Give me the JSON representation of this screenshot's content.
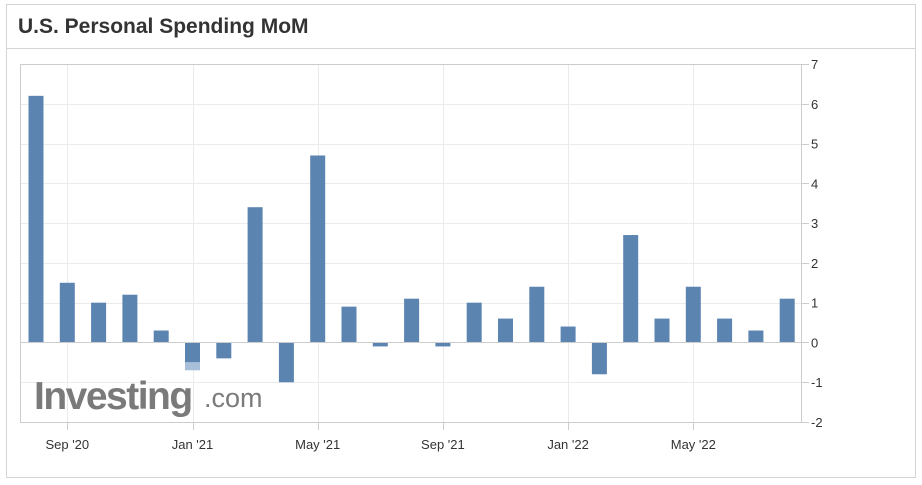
{
  "title": "U.S. Personal Spending MoM",
  "chart_data": {
    "type": "bar",
    "title": "U.S. Personal Spending MoM",
    "x": [
      "Aug '20",
      "Sep '20",
      "Oct '20",
      "Nov '20",
      "Dec '20",
      "Jan '21",
      "Feb '21",
      "Mar '21",
      "Apr '21",
      "May '21",
      "Jun '21",
      "Jul '21",
      "Aug '21",
      "Sep '21",
      "Oct '21",
      "Nov '21",
      "Dec '21",
      "Jan '22",
      "Feb '22",
      "Mar '22",
      "Apr '22",
      "May '22",
      "Jun '22",
      "Jul '22",
      "Aug '22"
    ],
    "values": [
      6.2,
      1.5,
      1.0,
      1.2,
      0.3,
      -0.5,
      -0.4,
      3.4,
      -1.0,
      4.7,
      0.9,
      -0.1,
      1.1,
      -0.1,
      1.0,
      0.6,
      1.4,
      0.4,
      -0.8,
      2.7,
      0.6,
      1.4,
      0.6,
      0.3,
      1.1
    ],
    "extensions": [
      {
        "x": "Jan '21",
        "from": -0.5,
        "to": -0.7,
        "color": "#a8bfd9"
      }
    ],
    "x_tick_labels": [
      "Sep '20",
      "Jan '21",
      "May '21",
      "Sep '21",
      "Jan '22",
      "May '22"
    ],
    "y_ticks": [
      7,
      6,
      5,
      4,
      3,
      2,
      1,
      0,
      -1,
      -2
    ],
    "ylim": [
      -2,
      7
    ],
    "y_axis_position": "right",
    "grid": true,
    "bar_color": "#5b84b1",
    "xlabel": "",
    "ylabel": ""
  },
  "watermark": {
    "brand": "Investing",
    "suffix": ".com"
  }
}
